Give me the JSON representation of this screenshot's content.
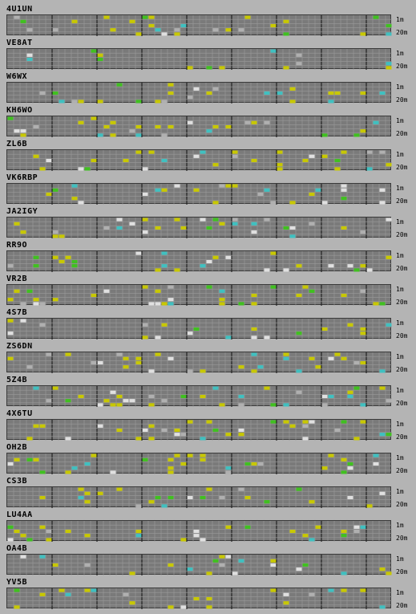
{
  "stations": [
    {
      "call": "4U1UN"
    },
    {
      "call": "VE8AT"
    },
    {
      "call": "W6WX"
    },
    {
      "call": "KH6WO"
    },
    {
      "call": "ZL6B"
    },
    {
      "call": "VK6RBP"
    },
    {
      "call": "JA2IGY"
    },
    {
      "call": "RR9O"
    },
    {
      "call": "VR2B"
    },
    {
      "call": "4S7B"
    },
    {
      "call": "ZS6DN"
    },
    {
      "call": "5Z4B"
    },
    {
      "call": "4X6TU"
    },
    {
      "call": "OH2B"
    },
    {
      "call": "CS3B"
    },
    {
      "call": "LU4AA"
    },
    {
      "call": "OA4B"
    },
    {
      "call": "YV5B"
    }
  ],
  "band_labels": {
    "top": "1m",
    "bottom": "20m"
  },
  "colors": {
    "background": "#b4b4b4",
    "grid": "#7a7a7a",
    "grid_line": "#9a9a9a",
    "divider": "#222222",
    "yellow": "#c8c800",
    "green": "#40c020",
    "cyan": "#40c0c0",
    "white": "#e0e0e0",
    "light": "#b0b0b0"
  }
}
